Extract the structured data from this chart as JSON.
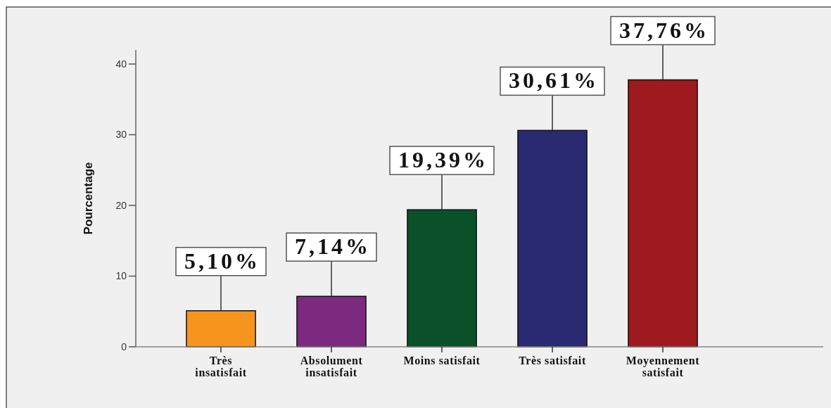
{
  "chart_data": {
    "type": "bar",
    "ylabel": "Pourcentage",
    "categories": [
      "Très insatisfait",
      "Absolument insatisfait",
      "Moins satisfait",
      "Très satisfait",
      "Moyennement satisfait"
    ],
    "values": [
      5.1,
      7.14,
      19.39,
      30.61,
      37.76
    ],
    "colors": [
      "#f7941d",
      "#7b2a7e",
      "#0a5028",
      "#2a2a72",
      "#9e1a1e"
    ],
    "value_labels": [
      "5,10%",
      "7,14%",
      "19,39%",
      "30,61%",
      "37,76%"
    ],
    "ylim": [
      0,
      42
    ],
    "yticks": [
      0,
      10,
      20,
      30,
      40
    ]
  }
}
